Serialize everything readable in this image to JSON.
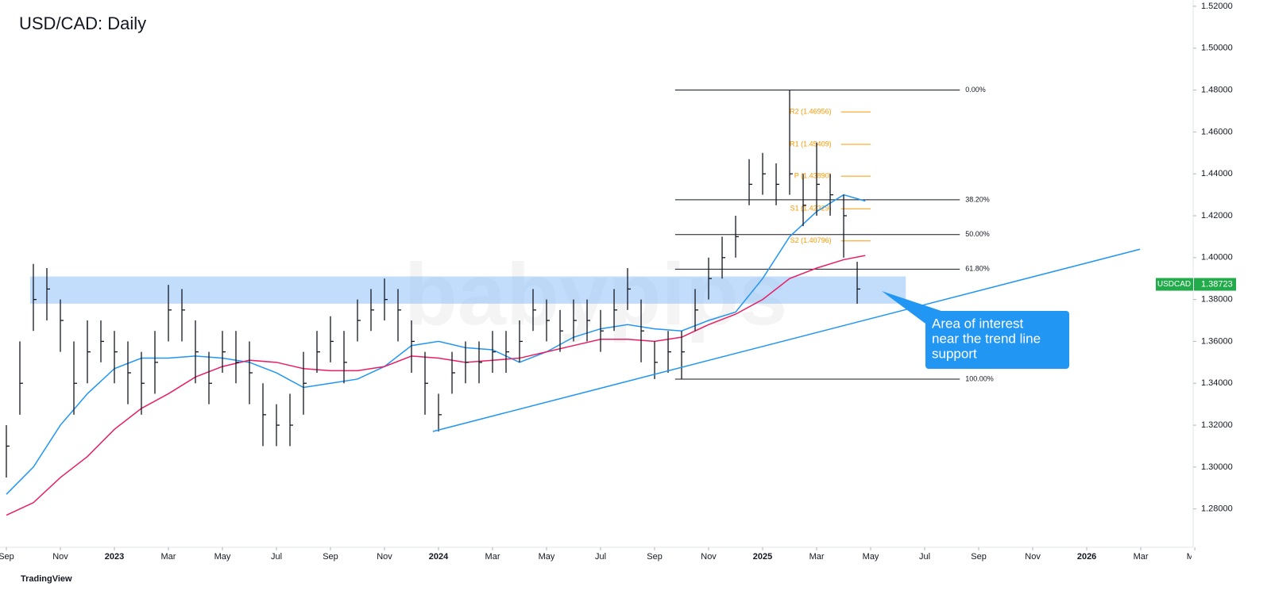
{
  "chart_data": {
    "type": "ohlc",
    "title": "USD/CAD: Daily",
    "symbol": "USDCAD",
    "last_price": 1.38723,
    "last_price_label": "1.38723",
    "watermark": "babypips",
    "footer": "TradingView",
    "ylim": [
      1.2617,
      1.523
    ],
    "yticks": [
      {
        "value": 1.52,
        "label": "1.52000"
      },
      {
        "value": 1.5,
        "label": "1.50000"
      },
      {
        "value": 1.48,
        "label": "1.48000"
      },
      {
        "value": 1.46,
        "label": "1.46000"
      },
      {
        "value": 1.44,
        "label": "1.44000"
      },
      {
        "value": 1.42,
        "label": "1.42000"
      },
      {
        "value": 1.4,
        "label": "1.40000"
      },
      {
        "value": 1.38,
        "label": "1.38000"
      },
      {
        "value": 1.36,
        "label": "1.36000"
      },
      {
        "value": 1.34,
        "label": "1.34000"
      },
      {
        "value": 1.32,
        "label": "1.32000"
      },
      {
        "value": 1.3,
        "label": "1.30000"
      },
      {
        "value": 1.28,
        "label": "1.28000"
      }
    ],
    "xlim": [
      -0.235,
      43.88
    ],
    "xticks": [
      {
        "value": 0,
        "label": "Sep"
      },
      {
        "value": 2,
        "label": "Nov"
      },
      {
        "value": 4,
        "label": "2023"
      },
      {
        "value": 6,
        "label": "Mar"
      },
      {
        "value": 8,
        "label": "May"
      },
      {
        "value": 10,
        "label": "Jul"
      },
      {
        "value": 12,
        "label": "Sep"
      },
      {
        "value": 14,
        "label": "Nov"
      },
      {
        "value": 16,
        "label": "2024"
      },
      {
        "value": 18,
        "label": "Mar"
      },
      {
        "value": 20,
        "label": "May"
      },
      {
        "value": 22,
        "label": "Jul"
      },
      {
        "value": 24,
        "label": "Sep"
      },
      {
        "value": 26,
        "label": "Nov"
      },
      {
        "value": 28,
        "label": "2025"
      },
      {
        "value": 30,
        "label": "Mar"
      },
      {
        "value": 32,
        "label": "May"
      },
      {
        "value": 34,
        "label": "Jul"
      },
      {
        "value": 36,
        "label": "Sep"
      },
      {
        "value": 38,
        "label": "Nov"
      },
      {
        "value": 40,
        "label": "2026"
      },
      {
        "value": 42,
        "label": "Mar"
      },
      {
        "value": 44,
        "label": "May"
      }
    ],
    "x": [
      0,
      0.5,
      1,
      1.5,
      2,
      2.5,
      3,
      3.5,
      4,
      4.5,
      5,
      5.5,
      6,
      6.5,
      7,
      7.5,
      8,
      8.5,
      9,
      9.5,
      10,
      10.5,
      11,
      11.5,
      12,
      12.5,
      13,
      13.5,
      14,
      14.5,
      15,
      15.5,
      16,
      16.5,
      17,
      17.5,
      18,
      18.5,
      19,
      19.5,
      20,
      20.5,
      21,
      21.5,
      22,
      22.5,
      23,
      23.5,
      24,
      24.5,
      25,
      25.5,
      26,
      26.5,
      27,
      27.5,
      28,
      28.5,
      29,
      29.5,
      30,
      30.5,
      31,
      31.5
    ],
    "high": [
      1.32,
      1.36,
      1.397,
      1.395,
      1.38,
      1.36,
      1.37,
      1.37,
      1.365,
      1.36,
      1.355,
      1.365,
      1.387,
      1.385,
      1.37,
      1.355,
      1.365,
      1.365,
      1.36,
      1.34,
      1.33,
      1.335,
      1.355,
      1.365,
      1.372,
      1.365,
      1.38,
      1.385,
      1.39,
      1.385,
      1.37,
      1.355,
      1.335,
      1.355,
      1.36,
      1.36,
      1.365,
      1.365,
      1.37,
      1.385,
      1.38,
      1.375,
      1.38,
      1.38,
      1.375,
      1.385,
      1.395,
      1.38,
      1.36,
      1.365,
      1.365,
      1.385,
      1.4,
      1.41,
      1.42,
      1.447,
      1.45,
      1.445,
      1.48,
      1.44,
      1.455,
      1.44,
      1.43,
      1.398
    ],
    "low": [
      1.295,
      1.325,
      1.365,
      1.37,
      1.355,
      1.325,
      1.34,
      1.35,
      1.34,
      1.33,
      1.325,
      1.335,
      1.36,
      1.36,
      1.34,
      1.33,
      1.345,
      1.34,
      1.33,
      1.31,
      1.31,
      1.31,
      1.325,
      1.345,
      1.35,
      1.34,
      1.36,
      1.365,
      1.37,
      1.36,
      1.345,
      1.325,
      1.317,
      1.335,
      1.34,
      1.34,
      1.345,
      1.345,
      1.35,
      1.365,
      1.36,
      1.355,
      1.36,
      1.36,
      1.355,
      1.365,
      1.375,
      1.35,
      1.342,
      1.345,
      1.342,
      1.365,
      1.38,
      1.39,
      1.4,
      1.425,
      1.43,
      1.425,
      1.43,
      1.415,
      1.42,
      1.42,
      1.4,
      1.378
    ],
    "close": [
      1.31,
      1.34,
      1.38,
      1.385,
      1.37,
      1.34,
      1.355,
      1.36,
      1.355,
      1.345,
      1.34,
      1.35,
      1.375,
      1.375,
      1.355,
      1.34,
      1.355,
      1.35,
      1.345,
      1.325,
      1.32,
      1.32,
      1.34,
      1.355,
      1.36,
      1.35,
      1.37,
      1.375,
      1.38,
      1.375,
      1.36,
      1.34,
      1.325,
      1.345,
      1.35,
      1.35,
      1.355,
      1.355,
      1.36,
      1.375,
      1.37,
      1.365,
      1.37,
      1.37,
      1.365,
      1.375,
      1.385,
      1.365,
      1.35,
      1.355,
      1.355,
      1.375,
      1.39,
      1.4,
      1.41,
      1.435,
      1.44,
      1.435,
      1.44,
      1.425,
      1.435,
      1.43,
      1.42,
      1.385
    ],
    "bar_color": "#131722",
    "moving_averages": [
      {
        "color": "#2196f3",
        "x": [
          0,
          1,
          2,
          3,
          4,
          5,
          6,
          7,
          8,
          9,
          10,
          11,
          12,
          13,
          14,
          15,
          16,
          17,
          18,
          19,
          20,
          21,
          22,
          23,
          24,
          25,
          26,
          27,
          28,
          29,
          30,
          31,
          31.8
        ],
        "values": [
          1.287,
          1.3,
          1.32,
          1.335,
          1.347,
          1.352,
          1.352,
          1.353,
          1.352,
          1.35,
          1.345,
          1.338,
          1.34,
          1.342,
          1.348,
          1.358,
          1.36,
          1.357,
          1.356,
          1.35,
          1.355,
          1.362,
          1.366,
          1.368,
          1.366,
          1.365,
          1.37,
          1.374,
          1.39,
          1.41,
          1.422,
          1.43,
          1.427
        ]
      },
      {
        "color": "#e91e63",
        "x": [
          0,
          1,
          2,
          3,
          4,
          5,
          6,
          7,
          8,
          9,
          10,
          11,
          12,
          13,
          14,
          15,
          16,
          17,
          18,
          19,
          20,
          21,
          22,
          23,
          24,
          25,
          26,
          27,
          28,
          29,
          30,
          31,
          31.8
        ],
        "values": [
          1.277,
          1.283,
          1.295,
          1.305,
          1.318,
          1.328,
          1.335,
          1.343,
          1.348,
          1.351,
          1.35,
          1.347,
          1.346,
          1.346,
          1.348,
          1.353,
          1.352,
          1.35,
          1.351,
          1.352,
          1.355,
          1.358,
          1.361,
          1.361,
          1.36,
          1.362,
          1.368,
          1.373,
          1.38,
          1.39,
          1.395,
          1.399,
          1.401
        ]
      }
    ],
    "trend_line": {
      "color": "#2196f3",
      "x": [
        15.79,
        41.97
      ],
      "y": [
        1.317,
        1.404
      ]
    },
    "zone": {
      "color": "#90bff9",
      "x": [
        0.88,
        33.3
      ],
      "y": [
        1.378,
        1.391
      ]
    },
    "fibonacci": {
      "x": [
        24.76,
        35.3
      ],
      "levels": [
        {
          "label": "0.00%",
          "value": 1.48
        },
        {
          "label": "38.20%",
          "value": 1.4276
        },
        {
          "label": "50.00%",
          "value": 1.411
        },
        {
          "label": "61.80%",
          "value": 1.3945
        },
        {
          "label": "100.00%",
          "value": 1.342
        }
      ]
    },
    "pivots": {
      "color": "#ff9800",
      "x": [
        30.9,
        32.0
      ],
      "levels": [
        {
          "label": "R2 (1.46956)",
          "value": 1.46956
        },
        {
          "label": "R1 (1.45409)",
          "value": 1.45409
        },
        {
          "label": "P (1.43890)",
          "value": 1.4389
        },
        {
          "label": "S1 (1.42329)",
          "value": 1.42329
        },
        {
          "label": "S2 (1.40796)",
          "value": 1.40796
        }
      ]
    },
    "annotation": {
      "text": [
        "Area of interest",
        "near the trend line",
        "support"
      ],
      "color": "#2196f3",
      "x": 32.41,
      "y": 1.384
    }
  }
}
